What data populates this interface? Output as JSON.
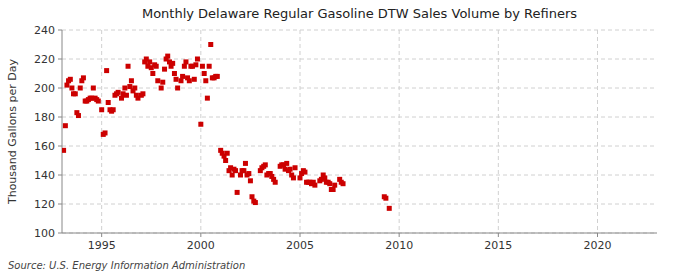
{
  "chart_data": {
    "type": "scatter",
    "title": "Monthly Delaware Regular Gasoline DTW Sales Volume by Refiners",
    "y_label": "Thousand Gallons per Day",
    "source": "Source: U.S. Energy Information Administration",
    "color": "#cc0000",
    "marker": "square",
    "grid": true,
    "xlim": [
      1993.0,
      2023.0
    ],
    "ylim": [
      100,
      240
    ],
    "xticks": [
      1995,
      2000,
      2005,
      2010,
      2015,
      2020
    ],
    "yticks": [
      100,
      120,
      140,
      160,
      180,
      200,
      220,
      240
    ],
    "x": [
      1993.08,
      1993.17,
      1993.25,
      1993.33,
      1993.42,
      1993.5,
      1993.58,
      1993.67,
      1993.75,
      1993.83,
      1993.92,
      1994.0,
      1994.08,
      1994.17,
      1994.25,
      1994.33,
      1994.42,
      1994.5,
      1994.58,
      1994.67,
      1994.75,
      1994.83,
      1995.0,
      1995.08,
      1995.17,
      1995.25,
      1995.33,
      1995.42,
      1995.5,
      1995.58,
      1995.67,
      1995.75,
      1995.83,
      1996.0,
      1996.08,
      1996.17,
      1996.25,
      1996.33,
      1996.42,
      1996.5,
      1996.58,
      1996.67,
      1996.75,
      1996.83,
      1997.0,
      1997.08,
      1997.17,
      1997.25,
      1997.33,
      1997.42,
      1997.5,
      1997.58,
      1997.67,
      1997.75,
      1997.83,
      1998.0,
      1998.08,
      1998.17,
      1998.25,
      1998.33,
      1998.42,
      1998.5,
      1998.58,
      1998.67,
      1998.75,
      1998.83,
      1999.0,
      1999.08,
      1999.17,
      1999.25,
      1999.33,
      1999.42,
      1999.5,
      1999.58,
      1999.67,
      1999.75,
      1999.83,
      2000.0,
      2000.08,
      2000.17,
      2000.25,
      2000.33,
      2000.42,
      2000.5,
      2000.58,
      2000.67,
      2000.75,
      2000.83,
      2001.0,
      2001.08,
      2001.17,
      2001.25,
      2001.33,
      2001.42,
      2001.5,
      2001.58,
      2001.67,
      2001.75,
      2001.83,
      2002.0,
      2002.08,
      2002.17,
      2002.25,
      2002.33,
      2002.42,
      2002.5,
      2002.58,
      2002.67,
      2002.75,
      2003.0,
      2003.08,
      2003.17,
      2003.25,
      2003.33,
      2003.42,
      2003.5,
      2003.58,
      2003.67,
      2003.75,
      2004.0,
      2004.08,
      2004.17,
      2004.25,
      2004.33,
      2004.42,
      2004.5,
      2004.58,
      2004.67,
      2004.75,
      2005.0,
      2005.08,
      2005.17,
      2005.25,
      2005.33,
      2005.42,
      2005.5,
      2005.58,
      2005.67,
      2005.75,
      2006.0,
      2006.08,
      2006.17,
      2006.25,
      2006.33,
      2006.42,
      2006.5,
      2006.58,
      2006.67,
      2006.75,
      2007.0,
      2007.08,
      2007.17,
      2009.25,
      2009.33,
      2009.5
    ],
    "values": [
      157.0,
      174.0,
      202.0,
      205.0,
      206.0,
      200.0,
      196.0,
      196.0,
      183.0,
      181.0,
      200.0,
      205.0,
      207.0,
      191.0,
      191.0,
      192.0,
      193.0,
      193.0,
      200.0,
      193.0,
      192.0,
      191.0,
      185.0,
      168.0,
      169.0,
      212.0,
      190.0,
      185.0,
      184.0,
      185.0,
      195.0,
      196.0,
      197.0,
      193.0,
      196.0,
      200.0,
      195.0,
      215.0,
      201.0,
      205.0,
      198.0,
      200.0,
      195.0,
      193.0,
      195.0,
      196.0,
      218.0,
      220.0,
      215.0,
      218.0,
      214.0,
      210.0,
      216.0,
      215.0,
      205.0,
      200.0,
      204.0,
      213.0,
      220.0,
      222.0,
      218.0,
      215.0,
      217.0,
      210.0,
      206.0,
      200.0,
      205.0,
      208.0,
      215.0,
      218.0,
      207.0,
      205.0,
      215.0,
      215.0,
      206.0,
      216.0,
      220.0,
      175.0,
      215.0,
      210.0,
      205.0,
      193.0,
      215.0,
      230.0,
      207.0,
      207.0,
      208.0,
      208.0,
      157.0,
      155.0,
      153.0,
      150.0,
      155.0,
      143.0,
      145.0,
      140.0,
      144.0,
      143.0,
      128.0,
      140.0,
      143.0,
      143.0,
      148.0,
      140.0,
      141.0,
      136.0,
      125.0,
      122.0,
      121.0,
      143.0,
      145.0,
      146.0,
      147.0,
      140.0,
      141.0,
      141.0,
      139.0,
      137.0,
      135.0,
      146.0,
      147.0,
      147.0,
      144.0,
      148.0,
      143.0,
      144.0,
      140.0,
      138.0,
      145.0,
      138.0,
      141.0,
      143.0,
      142.0,
      135.0,
      135.0,
      135.0,
      134.0,
      135.0,
      133.0,
      136.0,
      137.0,
      140.0,
      138.0,
      135.0,
      135.0,
      134.0,
      130.0,
      130.0,
      133.0,
      137.0,
      135.0,
      134.0,
      125.0,
      124.0,
      117.0
    ]
  }
}
